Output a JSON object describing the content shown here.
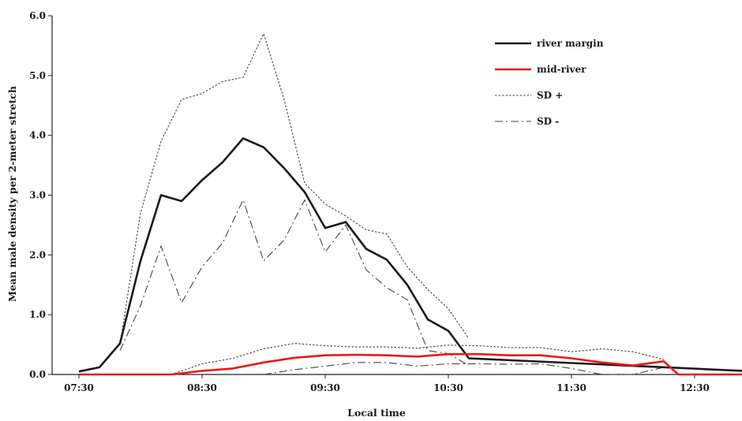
{
  "chart_data": {
    "type": "line",
    "xlabel": "Local time",
    "ylabel": "Mean male density per 2-meter stretch",
    "ylim": [
      0,
      6
    ],
    "xlim": [
      "07:30",
      "13:00"
    ],
    "x_ticks": [
      "07:30",
      "08:30",
      "09:30",
      "10:30",
      "11:30",
      "12:30"
    ],
    "y_ticks": [
      "0.0",
      "1.0",
      "2.0",
      "3.0",
      "4.0",
      "5.0",
      "6.0"
    ],
    "grid": false,
    "legend_position": "top-right",
    "series": [
      {
        "name": "river margin",
        "style": "solid-thick",
        "color": "#1a1a1a",
        "points": [
          [
            "07:30",
            0.05
          ],
          [
            "07:40",
            0.12
          ],
          [
            "07:50",
            0.52
          ],
          [
            "08:00",
            1.9
          ],
          [
            "08:10",
            3.0
          ],
          [
            "08:20",
            2.9
          ],
          [
            "08:30",
            3.25
          ],
          [
            "08:40",
            3.55
          ],
          [
            "08:50",
            3.95
          ],
          [
            "09:00",
            3.8
          ],
          [
            "09:10",
            3.45
          ],
          [
            "09:20",
            3.05
          ],
          [
            "09:30",
            2.45
          ],
          [
            "09:40",
            2.55
          ],
          [
            "09:50",
            2.1
          ],
          [
            "10:00",
            1.92
          ],
          [
            "10:10",
            1.5
          ],
          [
            "10:20",
            0.92
          ],
          [
            "10:30",
            0.73
          ],
          [
            "10:40",
            0.27
          ],
          [
            "13:00",
            0.05
          ]
        ]
      },
      {
        "name": "mid-river",
        "style": "solid-thick",
        "color": "#e8191b",
        "points": [
          [
            "07:30",
            0.0
          ],
          [
            "08:15",
            0.0
          ],
          [
            "08:30",
            0.06
          ],
          [
            "08:45",
            0.1
          ],
          [
            "09:00",
            0.2
          ],
          [
            "09:15",
            0.28
          ],
          [
            "09:30",
            0.32
          ],
          [
            "09:45",
            0.33
          ],
          [
            "10:00",
            0.32
          ],
          [
            "10:15",
            0.3
          ],
          [
            "10:30",
            0.34
          ],
          [
            "10:45",
            0.34
          ],
          [
            "11:00",
            0.32
          ],
          [
            "11:15",
            0.32
          ],
          [
            "11:30",
            0.27
          ],
          [
            "11:45",
            0.2
          ],
          [
            "12:00",
            0.15
          ],
          [
            "12:15",
            0.22
          ],
          [
            "12:22",
            0.0
          ],
          [
            "13:00",
            0.0
          ]
        ]
      },
      {
        "name": "SD +",
        "style": "dotted",
        "color": "#444444",
        "points": [
          [
            "07:50",
            0.5
          ],
          [
            "08:00",
            2.7
          ],
          [
            "08:10",
            3.9
          ],
          [
            "08:20",
            4.6
          ],
          [
            "08:30",
            4.7
          ],
          [
            "08:40",
            4.9
          ],
          [
            "08:50",
            4.97
          ],
          [
            "09:00",
            5.7
          ],
          [
            "09:10",
            4.6
          ],
          [
            "09:20",
            3.2
          ],
          [
            "09:30",
            2.85
          ],
          [
            "09:40",
            2.65
          ],
          [
            "09:50",
            2.42
          ],
          [
            "10:00",
            2.35
          ],
          [
            "10:10",
            1.8
          ],
          [
            "10:20",
            1.42
          ],
          [
            "10:30",
            1.1
          ],
          [
            "10:40",
            0.6
          ]
        ]
      },
      {
        "name": "SD -",
        "style": "dash-dot",
        "color": "#444444",
        "points": [
          [
            "07:50",
            0.4
          ],
          [
            "08:00",
            1.15
          ],
          [
            "08:10",
            2.15
          ],
          [
            "08:20",
            1.2
          ],
          [
            "08:30",
            1.8
          ],
          [
            "08:40",
            2.2
          ],
          [
            "08:50",
            2.92
          ],
          [
            "09:00",
            1.9
          ],
          [
            "09:10",
            2.25
          ],
          [
            "09:20",
            2.92
          ],
          [
            "09:30",
            2.05
          ],
          [
            "09:40",
            2.5
          ],
          [
            "09:50",
            1.75
          ],
          [
            "10:00",
            1.45
          ],
          [
            "10:10",
            1.25
          ],
          [
            "10:20",
            0.4
          ],
          [
            "10:30",
            0.35
          ],
          [
            "10:40",
            0.15
          ]
        ]
      },
      {
        "name": "",
        "style": "dotted",
        "color": "#444444",
        "points": [
          [
            "08:15",
            0.0
          ],
          [
            "08:30",
            0.18
          ],
          [
            "08:45",
            0.27
          ],
          [
            "09:00",
            0.43
          ],
          [
            "09:15",
            0.52
          ],
          [
            "09:30",
            0.48
          ],
          [
            "09:45",
            0.46
          ],
          [
            "10:00",
            0.46
          ],
          [
            "10:15",
            0.44
          ],
          [
            "10:30",
            0.49
          ],
          [
            "10:45",
            0.48
          ],
          [
            "11:00",
            0.45
          ],
          [
            "11:15",
            0.45
          ],
          [
            "11:30",
            0.38
          ],
          [
            "11:45",
            0.43
          ],
          [
            "12:00",
            0.38
          ],
          [
            "12:15",
            0.25
          ]
        ]
      },
      {
        "name": "",
        "style": "dash-dot",
        "color": "#444444",
        "points": [
          [
            "09:00",
            0.0
          ],
          [
            "09:15",
            0.08
          ],
          [
            "09:30",
            0.14
          ],
          [
            "09:45",
            0.2
          ],
          [
            "10:00",
            0.2
          ],
          [
            "10:15",
            0.14
          ],
          [
            "10:30",
            0.18
          ],
          [
            "10:45",
            0.18
          ],
          [
            "11:00",
            0.17
          ],
          [
            "11:15",
            0.18
          ],
          [
            "11:30",
            0.1
          ],
          [
            "11:45",
            0.0
          ],
          [
            "12:00",
            0.0
          ],
          [
            "12:15",
            0.12
          ]
        ]
      }
    ]
  }
}
